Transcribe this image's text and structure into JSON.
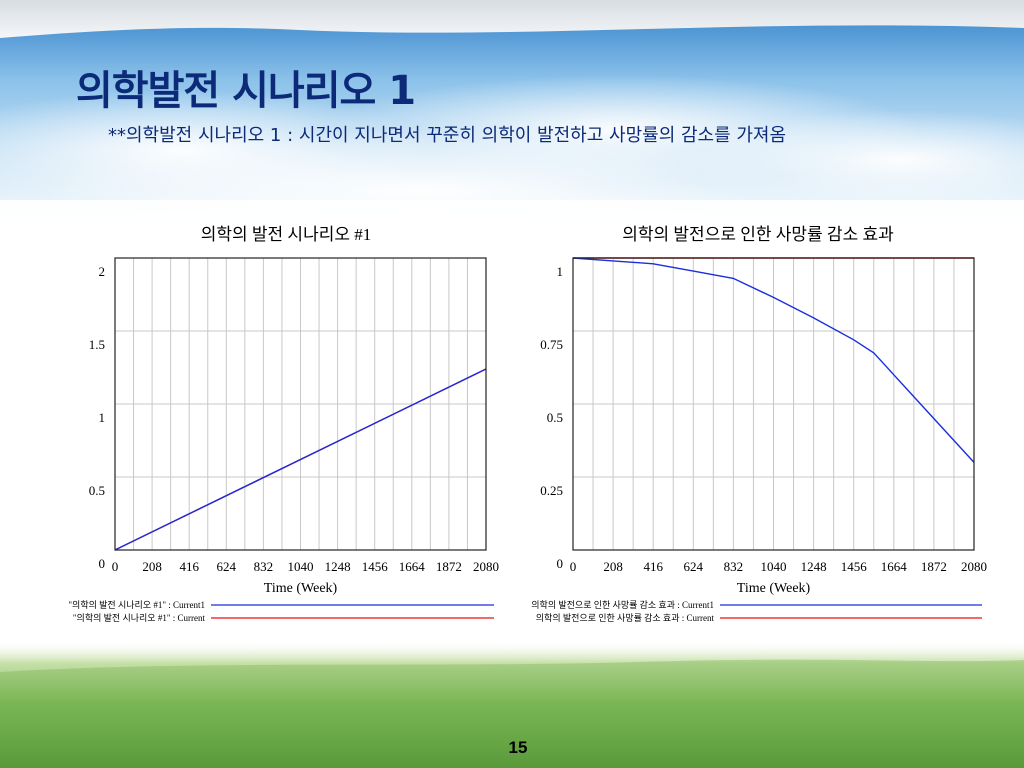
{
  "slide": {
    "title": "의학발전 시나리오 1",
    "subtitle": "**의학발전 시나리오 1 : 시간이 지나면서 꾸준히 의학이 발전하고 사망률의 감소를 가져옴",
    "page_number": "15"
  },
  "chart_data": [
    {
      "type": "line",
      "title": "의학의 발전 시나리오 #1",
      "xlabel": "Time (Week)",
      "ylabel": "",
      "xlim": [
        0,
        2080
      ],
      "ylim": [
        0,
        2
      ],
      "x_ticks": [
        0,
        208,
        416,
        624,
        832,
        1040,
        1248,
        1456,
        1664,
        1872,
        2080
      ],
      "x_tick_labels": [
        "0",
        "208",
        "416",
        "624",
        "832",
        "1040",
        "1248",
        "1456",
        "1664",
        "1872",
        "2080"
      ],
      "y_ticks": [
        0,
        0.5,
        1,
        1.5,
        2
      ],
      "y_tick_labels": [
        "0",
        "0.5",
        "1",
        "1.5",
        "2"
      ],
      "grid": true,
      "legend_position": "bottom",
      "series": [
        {
          "name": "\"의학의 발전 시나리오 #1\" : Current1",
          "color": "#1a2ee0",
          "x": [
            0,
            2080
          ],
          "y": [
            0,
            1.24
          ]
        },
        {
          "name": "\"의학의 발전 시나리오 #1\" : Current",
          "color": "#e81010",
          "x": [
            0,
            2080
          ],
          "y": [
            0,
            1.24
          ]
        }
      ]
    },
    {
      "type": "line",
      "title": "의학의 발전으로 인한 사망률 감소 효과",
      "xlabel": "Time (Week)",
      "ylabel": "",
      "xlim": [
        0,
        2080
      ],
      "ylim": [
        0,
        1
      ],
      "x_ticks": [
        0,
        208,
        416,
        624,
        832,
        1040,
        1248,
        1456,
        1664,
        1872,
        2080
      ],
      "x_tick_labels": [
        "0",
        "208",
        "416",
        "624",
        "832",
        "1040",
        "1248",
        "1456",
        "1664",
        "1872",
        "2080"
      ],
      "y_ticks": [
        0,
        0.25,
        0.5,
        0.75,
        1
      ],
      "y_tick_labels": [
        "0",
        "0.25",
        "0.5",
        "0.75",
        "1"
      ],
      "grid": true,
      "legend_position": "bottom",
      "series": [
        {
          "name": "의학의 발전으로 인한 사망률 감소 효과 : Current1",
          "color": "#1a2ee0",
          "x": [
            0,
            208,
            416,
            624,
            832,
            1040,
            1248,
            1456,
            1560,
            1664,
            1872,
            2080
          ],
          "y": [
            1.0,
            0.99,
            0.98,
            0.955,
            0.93,
            0.865,
            0.795,
            0.72,
            0.675,
            0.6,
            0.45,
            0.3
          ]
        },
        {
          "name": "의학의 발전으로 인한 사망률 감소 효과 : Current",
          "color": "#e81010",
          "x": [
            0,
            2080
          ],
          "y": [
            1.0,
            1.0
          ]
        }
      ]
    }
  ]
}
